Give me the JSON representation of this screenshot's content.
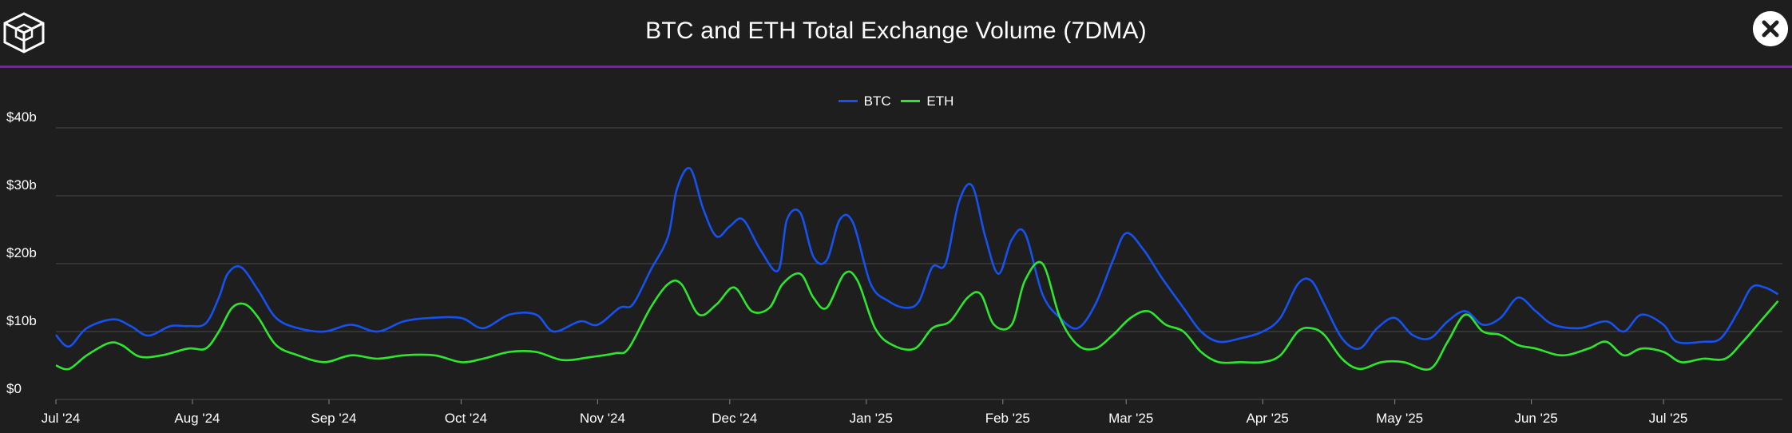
{
  "title": "BTC and ETH Total Exchange Volume (7DMA)",
  "icons": {
    "logo": "cube-logo-icon",
    "close": "close-icon"
  },
  "colors": {
    "btc": "#1652f0",
    "eth": "#2ee62e",
    "grid": "#4a4a4a",
    "divider": "#6b2d8c",
    "background": "#1e1e1e"
  },
  "legend": [
    {
      "label": "BTC",
      "color": "#1652f0"
    },
    {
      "label": "ETH",
      "color": "#2ee62e"
    }
  ],
  "chart_data": {
    "type": "line",
    "title": "BTC and ETH Total Exchange Volume (7DMA)",
    "xlabel": "",
    "ylabel": "",
    "x_ticks": [
      "Jul '24",
      "Aug '24",
      "Sep '24",
      "Oct '24",
      "Nov '24",
      "Dec '24",
      "Jan '25",
      "Feb '25",
      "Mar '25",
      "Apr '25",
      "May '25",
      "Jun '25",
      "Jul '25"
    ],
    "y_ticks": [
      "$0",
      "$10b",
      "$20b",
      "$30b",
      "$40b"
    ],
    "ylim": [
      0,
      40
    ],
    "y_unit": "$b",
    "grid": true,
    "legend_position": "top-center",
    "series": [
      {
        "name": "BTC",
        "points": [
          [
            "2024-07-01",
            9.5
          ],
          [
            "2024-07-04",
            7.8
          ],
          [
            "2024-07-08",
            10.5
          ],
          [
            "2024-07-14",
            11.8
          ],
          [
            "2024-07-18",
            10.8
          ],
          [
            "2024-07-22",
            9.4
          ],
          [
            "2024-07-27",
            10.8
          ],
          [
            "2024-07-31",
            10.8
          ],
          [
            "2024-08-04",
            11.2
          ],
          [
            "2024-08-07",
            15.0
          ],
          [
            "2024-08-09",
            18.5
          ],
          [
            "2024-08-12",
            19.5
          ],
          [
            "2024-08-16",
            16.0
          ],
          [
            "2024-08-20",
            12.0
          ],
          [
            "2024-08-25",
            10.5
          ],
          [
            "2024-08-31",
            10.0
          ],
          [
            "2024-09-06",
            11.0
          ],
          [
            "2024-09-12",
            10.0
          ],
          [
            "2024-09-18",
            11.5
          ],
          [
            "2024-09-24",
            12.0
          ],
          [
            "2024-10-01",
            12.0
          ],
          [
            "2024-10-06",
            10.5
          ],
          [
            "2024-10-12",
            12.5
          ],
          [
            "2024-10-18",
            12.5
          ],
          [
            "2024-10-22",
            10.0
          ],
          [
            "2024-10-28",
            11.5
          ],
          [
            "2024-11-01",
            11.0
          ],
          [
            "2024-11-06",
            13.5
          ],
          [
            "2024-11-09",
            14.0
          ],
          [
            "2024-11-13",
            19.0
          ],
          [
            "2024-11-17",
            24.0
          ],
          [
            "2024-11-19",
            31.0
          ],
          [
            "2024-11-22",
            34.0
          ],
          [
            "2024-11-25",
            28.0
          ],
          [
            "2024-11-28",
            24.0
          ],
          [
            "2024-12-01",
            25.5
          ],
          [
            "2024-12-04",
            26.5
          ],
          [
            "2024-12-08",
            22.0
          ],
          [
            "2024-12-12",
            19.0
          ],
          [
            "2024-12-14",
            26.5
          ],
          [
            "2024-12-17",
            27.5
          ],
          [
            "2024-12-20",
            21.0
          ],
          [
            "2024-12-23",
            20.5
          ],
          [
            "2024-12-26",
            26.5
          ],
          [
            "2024-12-29",
            26.0
          ],
          [
            "2025-01-02",
            17.0
          ],
          [
            "2025-01-06",
            14.5
          ],
          [
            "2025-01-10",
            13.5
          ],
          [
            "2025-01-13",
            14.5
          ],
          [
            "2025-01-16",
            19.5
          ],
          [
            "2025-01-19",
            20.0
          ],
          [
            "2025-01-22",
            29.0
          ],
          [
            "2025-01-25",
            31.5
          ],
          [
            "2025-01-28",
            24.0
          ],
          [
            "2025-01-31",
            18.5
          ],
          [
            "2025-02-03",
            23.5
          ],
          [
            "2025-02-06",
            24.5
          ],
          [
            "2025-02-10",
            15.5
          ],
          [
            "2025-02-14",
            12.0
          ],
          [
            "2025-02-18",
            10.5
          ],
          [
            "2025-02-22",
            14.0
          ],
          [
            "2025-02-26",
            20.5
          ],
          [
            "2025-03-01",
            24.5
          ],
          [
            "2025-03-05",
            22.0
          ],
          [
            "2025-03-09",
            18.0
          ],
          [
            "2025-03-14",
            13.5
          ],
          [
            "2025-03-18",
            10.0
          ],
          [
            "2025-03-22",
            8.5
          ],
          [
            "2025-03-27",
            9.0
          ],
          [
            "2025-04-01",
            10.0
          ],
          [
            "2025-04-05",
            12.0
          ],
          [
            "2025-04-09",
            17.0
          ],
          [
            "2025-04-12",
            17.5
          ],
          [
            "2025-04-15",
            14.0
          ],
          [
            "2025-04-19",
            9.0
          ],
          [
            "2025-04-23",
            7.5
          ],
          [
            "2025-04-27",
            10.5
          ],
          [
            "2025-05-01",
            12.0
          ],
          [
            "2025-05-05",
            9.5
          ],
          [
            "2025-05-09",
            9.0
          ],
          [
            "2025-05-13",
            11.5
          ],
          [
            "2025-05-17",
            13.0
          ],
          [
            "2025-05-21",
            11.0
          ],
          [
            "2025-05-25",
            12.0
          ],
          [
            "2025-05-29",
            15.0
          ],
          [
            "2025-06-02",
            13.0
          ],
          [
            "2025-06-06",
            11.0
          ],
          [
            "2025-06-12",
            10.5
          ],
          [
            "2025-06-18",
            11.5
          ],
          [
            "2025-06-22",
            10.0
          ],
          [
            "2025-06-26",
            12.5
          ],
          [
            "2025-07-01",
            11.0
          ],
          [
            "2025-07-04",
            8.5
          ],
          [
            "2025-07-10",
            8.5
          ],
          [
            "2025-07-14",
            9.0
          ],
          [
            "2025-07-18",
            13.0
          ],
          [
            "2025-07-21",
            16.5
          ],
          [
            "2025-07-24",
            16.5
          ],
          [
            "2025-07-27",
            15.5
          ]
        ]
      },
      {
        "name": "ETH",
        "points": [
          [
            "2024-07-01",
            5.0
          ],
          [
            "2024-07-04",
            4.5
          ],
          [
            "2024-07-08",
            6.5
          ],
          [
            "2024-07-13",
            8.3
          ],
          [
            "2024-07-16",
            8.0
          ],
          [
            "2024-07-20",
            6.3
          ],
          [
            "2024-07-25",
            6.5
          ],
          [
            "2024-07-31",
            7.5
          ],
          [
            "2024-08-04",
            7.5
          ],
          [
            "2024-08-07",
            10.0
          ],
          [
            "2024-08-10",
            13.5
          ],
          [
            "2024-08-13",
            14.0
          ],
          [
            "2024-08-16",
            12.0
          ],
          [
            "2024-08-20",
            8.0
          ],
          [
            "2024-08-25",
            6.5
          ],
          [
            "2024-08-31",
            5.5
          ],
          [
            "2024-09-06",
            6.5
          ],
          [
            "2024-09-12",
            6.0
          ],
          [
            "2024-09-18",
            6.5
          ],
          [
            "2024-09-25",
            6.5
          ],
          [
            "2024-10-01",
            5.5
          ],
          [
            "2024-10-06",
            6.0
          ],
          [
            "2024-10-12",
            7.0
          ],
          [
            "2024-10-18",
            7.0
          ],
          [
            "2024-10-24",
            5.8
          ],
          [
            "2024-10-30",
            6.2
          ],
          [
            "2024-11-05",
            6.8
          ],
          [
            "2024-11-08",
            7.5
          ],
          [
            "2024-11-13",
            13.5
          ],
          [
            "2024-11-17",
            17.0
          ],
          [
            "2024-11-20",
            17.0
          ],
          [
            "2024-11-24",
            12.5
          ],
          [
            "2024-11-28",
            14.0
          ],
          [
            "2024-12-02",
            16.5
          ],
          [
            "2024-12-06",
            13.0
          ],
          [
            "2024-12-10",
            13.5
          ],
          [
            "2024-12-13",
            17.0
          ],
          [
            "2024-12-17",
            18.5
          ],
          [
            "2024-12-20",
            15.0
          ],
          [
            "2024-12-23",
            13.5
          ],
          [
            "2024-12-27",
            18.5
          ],
          [
            "2024-12-30",
            17.5
          ],
          [
            "2025-01-03",
            10.5
          ],
          [
            "2025-01-07",
            8.0
          ],
          [
            "2025-01-12",
            7.5
          ],
          [
            "2025-01-16",
            10.5
          ],
          [
            "2025-01-20",
            11.5
          ],
          [
            "2025-01-24",
            15.0
          ],
          [
            "2025-01-27",
            15.5
          ],
          [
            "2025-01-30",
            11.0
          ],
          [
            "2025-02-03",
            11.0
          ],
          [
            "2025-02-06",
            17.5
          ],
          [
            "2025-02-10",
            20.0
          ],
          [
            "2025-02-14",
            12.0
          ],
          [
            "2025-02-18",
            8.0
          ],
          [
            "2025-02-22",
            7.5
          ],
          [
            "2025-02-26",
            9.5
          ],
          [
            "2025-03-02",
            12.0
          ],
          [
            "2025-03-06",
            13.0
          ],
          [
            "2025-03-10",
            11.0
          ],
          [
            "2025-03-14",
            10.0
          ],
          [
            "2025-03-18",
            7.0
          ],
          [
            "2025-03-22",
            5.5
          ],
          [
            "2025-03-27",
            5.5
          ],
          [
            "2025-04-01",
            5.5
          ],
          [
            "2025-04-05",
            6.5
          ],
          [
            "2025-04-09",
            10.0
          ],
          [
            "2025-04-12",
            10.5
          ],
          [
            "2025-04-15",
            9.5
          ],
          [
            "2025-04-19",
            6.0
          ],
          [
            "2025-04-23",
            4.5
          ],
          [
            "2025-04-28",
            5.5
          ],
          [
            "2025-05-03",
            5.5
          ],
          [
            "2025-05-09",
            4.5
          ],
          [
            "2025-05-13",
            8.5
          ],
          [
            "2025-05-17",
            12.5
          ],
          [
            "2025-05-21",
            10.0
          ],
          [
            "2025-05-25",
            9.5
          ],
          [
            "2025-05-29",
            8.0
          ],
          [
            "2025-06-02",
            7.5
          ],
          [
            "2025-06-08",
            6.5
          ],
          [
            "2025-06-14",
            7.5
          ],
          [
            "2025-06-18",
            8.5
          ],
          [
            "2025-06-22",
            6.5
          ],
          [
            "2025-06-26",
            7.5
          ],
          [
            "2025-07-01",
            7.0
          ],
          [
            "2025-07-05",
            5.5
          ],
          [
            "2025-07-10",
            6.0
          ],
          [
            "2025-07-15",
            6.0
          ],
          [
            "2025-07-19",
            8.5
          ],
          [
            "2025-07-23",
            11.5
          ],
          [
            "2025-07-27",
            14.5
          ]
        ]
      }
    ]
  }
}
